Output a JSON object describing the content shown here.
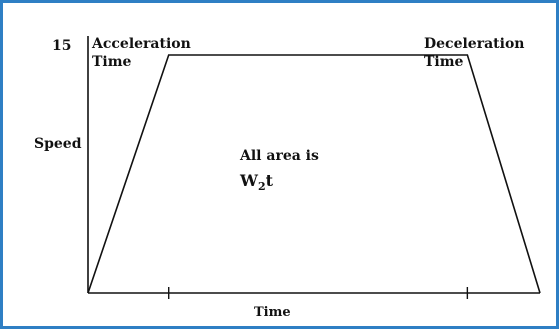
{
  "chart_data": {
    "type": "line",
    "title": "",
    "xlabel": "Time",
    "ylabel": "Speed",
    "y_tick_labels": [
      "15"
    ],
    "x": [
      0,
      1,
      4.7,
      5.6
    ],
    "y": [
      0,
      15,
      15,
      0
    ],
    "xlim": [
      0,
      5.6
    ],
    "ylim": [
      0,
      15
    ],
    "grid": false,
    "annotations": {
      "accel_line1": "Acceleration",
      "accel_line2": "Time",
      "decel_line1": "Deceleration",
      "decel_line2": "Time",
      "area_line1": "All area is",
      "area_main": "W",
      "area_sub": "2",
      "area_tail": "t"
    },
    "colors": {
      "border": "#2f7fc4",
      "line": "#111111"
    }
  }
}
